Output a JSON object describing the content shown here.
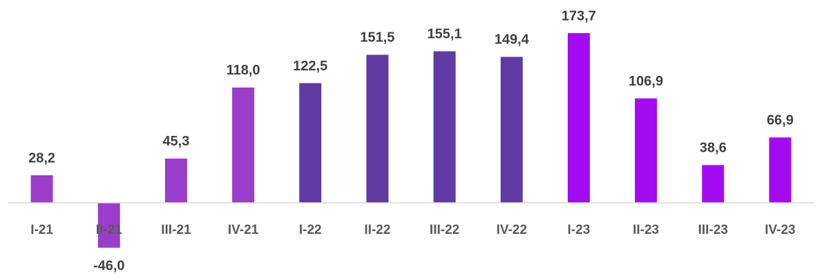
{
  "chart_data": {
    "type": "bar",
    "categories": [
      "I-21",
      "II-21",
      "III-21",
      "IV-21",
      "I-22",
      "II-22",
      "III-22",
      "IV-22",
      "I-23",
      "II-23",
      "III-23",
      "IV-23"
    ],
    "values": [
      28.2,
      -46.0,
      45.3,
      118.0,
      122.5,
      151.5,
      155.1,
      149.4,
      173.7,
      106.9,
      38.6,
      66.9
    ],
    "value_labels": [
      "28,2",
      "-46,0",
      "45,3",
      "118,0",
      "122,5",
      "151,5",
      "155,1",
      "149,4",
      "173,7",
      "106,9",
      "38,6",
      "66,9"
    ],
    "colors": [
      "#9a3dcb",
      "#9a3dcb",
      "#9a3dcb",
      "#9a3dcb",
      "#5f3ba3",
      "#5f3ba3",
      "#5f3ba3",
      "#5f3ba3",
      "#a30cf2",
      "#a30cf2",
      "#a30cf2",
      "#a30cf2"
    ]
  }
}
